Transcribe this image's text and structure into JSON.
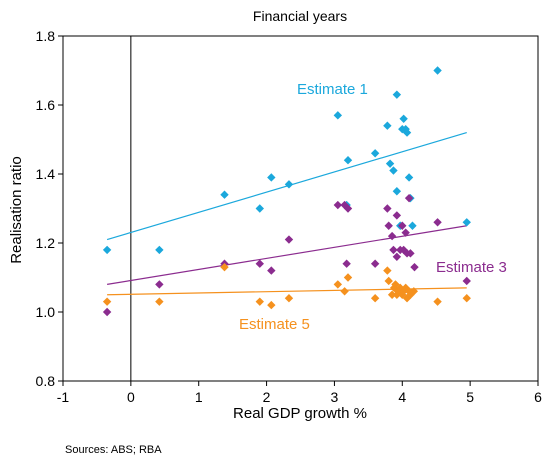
{
  "chart_data": {
    "type": "scatter",
    "title": "Financial years",
    "xlabel": "Real GDP growth %",
    "ylabel": "Realisation ratio",
    "source": "Sources: ABS; RBA",
    "xlim": [
      -1,
      6
    ],
    "ylim": [
      0.8,
      1.8
    ],
    "xticks": [
      "-1",
      "0",
      "1",
      "2",
      "3",
      "4",
      "5",
      "6"
    ],
    "yticks": [
      "0.8",
      "1.0",
      "1.2",
      "1.4",
      "1.6",
      "1.8"
    ],
    "grid": false,
    "series": [
      {
        "name": "Estimate 1",
        "color": "#1ba8dc",
        "points": [
          [
            -0.35,
            1.18
          ],
          [
            0.42,
            1.18
          ],
          [
            1.38,
            1.34
          ],
          [
            1.9,
            1.3
          ],
          [
            2.07,
            1.39
          ],
          [
            2.33,
            1.37
          ],
          [
            3.05,
            1.57
          ],
          [
            3.2,
            1.44
          ],
          [
            3.18,
            1.31
          ],
          [
            3.6,
            1.46
          ],
          [
            3.78,
            1.54
          ],
          [
            3.82,
            1.43
          ],
          [
            3.87,
            1.41
          ],
          [
            3.92,
            1.63
          ],
          [
            3.92,
            1.35
          ],
          [
            3.97,
            1.25
          ],
          [
            4.0,
            1.53
          ],
          [
            4.02,
            1.56
          ],
          [
            4.05,
            1.53
          ],
          [
            4.07,
            1.52
          ],
          [
            4.1,
            1.39
          ],
          [
            4.12,
            1.33
          ],
          [
            4.15,
            1.25
          ],
          [
            4.52,
            1.7
          ],
          [
            4.95,
            1.26
          ]
        ],
        "trend": [
          [
            -0.35,
            1.21
          ],
          [
            4.95,
            1.52
          ]
        ]
      },
      {
        "name": "Estimate 3",
        "color": "#8b2c8f",
        "points": [
          [
            -0.35,
            1.0
          ],
          [
            0.42,
            1.08
          ],
          [
            1.38,
            1.14
          ],
          [
            1.9,
            1.14
          ],
          [
            2.07,
            1.12
          ],
          [
            2.33,
            1.21
          ],
          [
            3.05,
            1.31
          ],
          [
            3.15,
            1.31
          ],
          [
            3.2,
            1.3
          ],
          [
            3.18,
            1.14
          ],
          [
            3.6,
            1.14
          ],
          [
            3.78,
            1.3
          ],
          [
            3.8,
            1.25
          ],
          [
            3.85,
            1.22
          ],
          [
            3.87,
            1.18
          ],
          [
            3.92,
            1.28
          ],
          [
            3.92,
            1.16
          ],
          [
            3.97,
            1.18
          ],
          [
            4.0,
            1.25
          ],
          [
            4.02,
            1.18
          ],
          [
            4.05,
            1.23
          ],
          [
            4.07,
            1.17
          ],
          [
            4.1,
            1.33
          ],
          [
            4.12,
            1.17
          ],
          [
            4.18,
            1.13
          ],
          [
            4.52,
            1.26
          ],
          [
            4.95,
            1.09
          ]
        ],
        "trend": [
          [
            -0.35,
            1.08
          ],
          [
            4.95,
            1.25
          ]
        ]
      },
      {
        "name": "Estimate 5",
        "color": "#f5911e",
        "points": [
          [
            -0.35,
            1.03
          ],
          [
            0.42,
            1.03
          ],
          [
            1.38,
            1.13
          ],
          [
            1.9,
            1.03
          ],
          [
            2.07,
            1.02
          ],
          [
            2.33,
            1.04
          ],
          [
            3.05,
            1.08
          ],
          [
            3.15,
            1.06
          ],
          [
            3.2,
            1.1
          ],
          [
            3.6,
            1.04
          ],
          [
            3.78,
            1.12
          ],
          [
            3.8,
            1.09
          ],
          [
            3.85,
            1.05
          ],
          [
            3.88,
            1.07
          ],
          [
            3.9,
            1.08
          ],
          [
            3.92,
            1.05
          ],
          [
            3.94,
            1.06
          ],
          [
            3.97,
            1.07
          ],
          [
            4.0,
            1.05
          ],
          [
            4.02,
            1.06
          ],
          [
            4.05,
            1.07
          ],
          [
            4.07,
            1.04
          ],
          [
            4.1,
            1.06
          ],
          [
            4.12,
            1.05
          ],
          [
            4.17,
            1.06
          ],
          [
            4.52,
            1.03
          ],
          [
            4.95,
            1.04
          ]
        ],
        "trend": [
          [
            -0.35,
            1.05
          ],
          [
            4.95,
            1.07
          ]
        ]
      }
    ]
  }
}
